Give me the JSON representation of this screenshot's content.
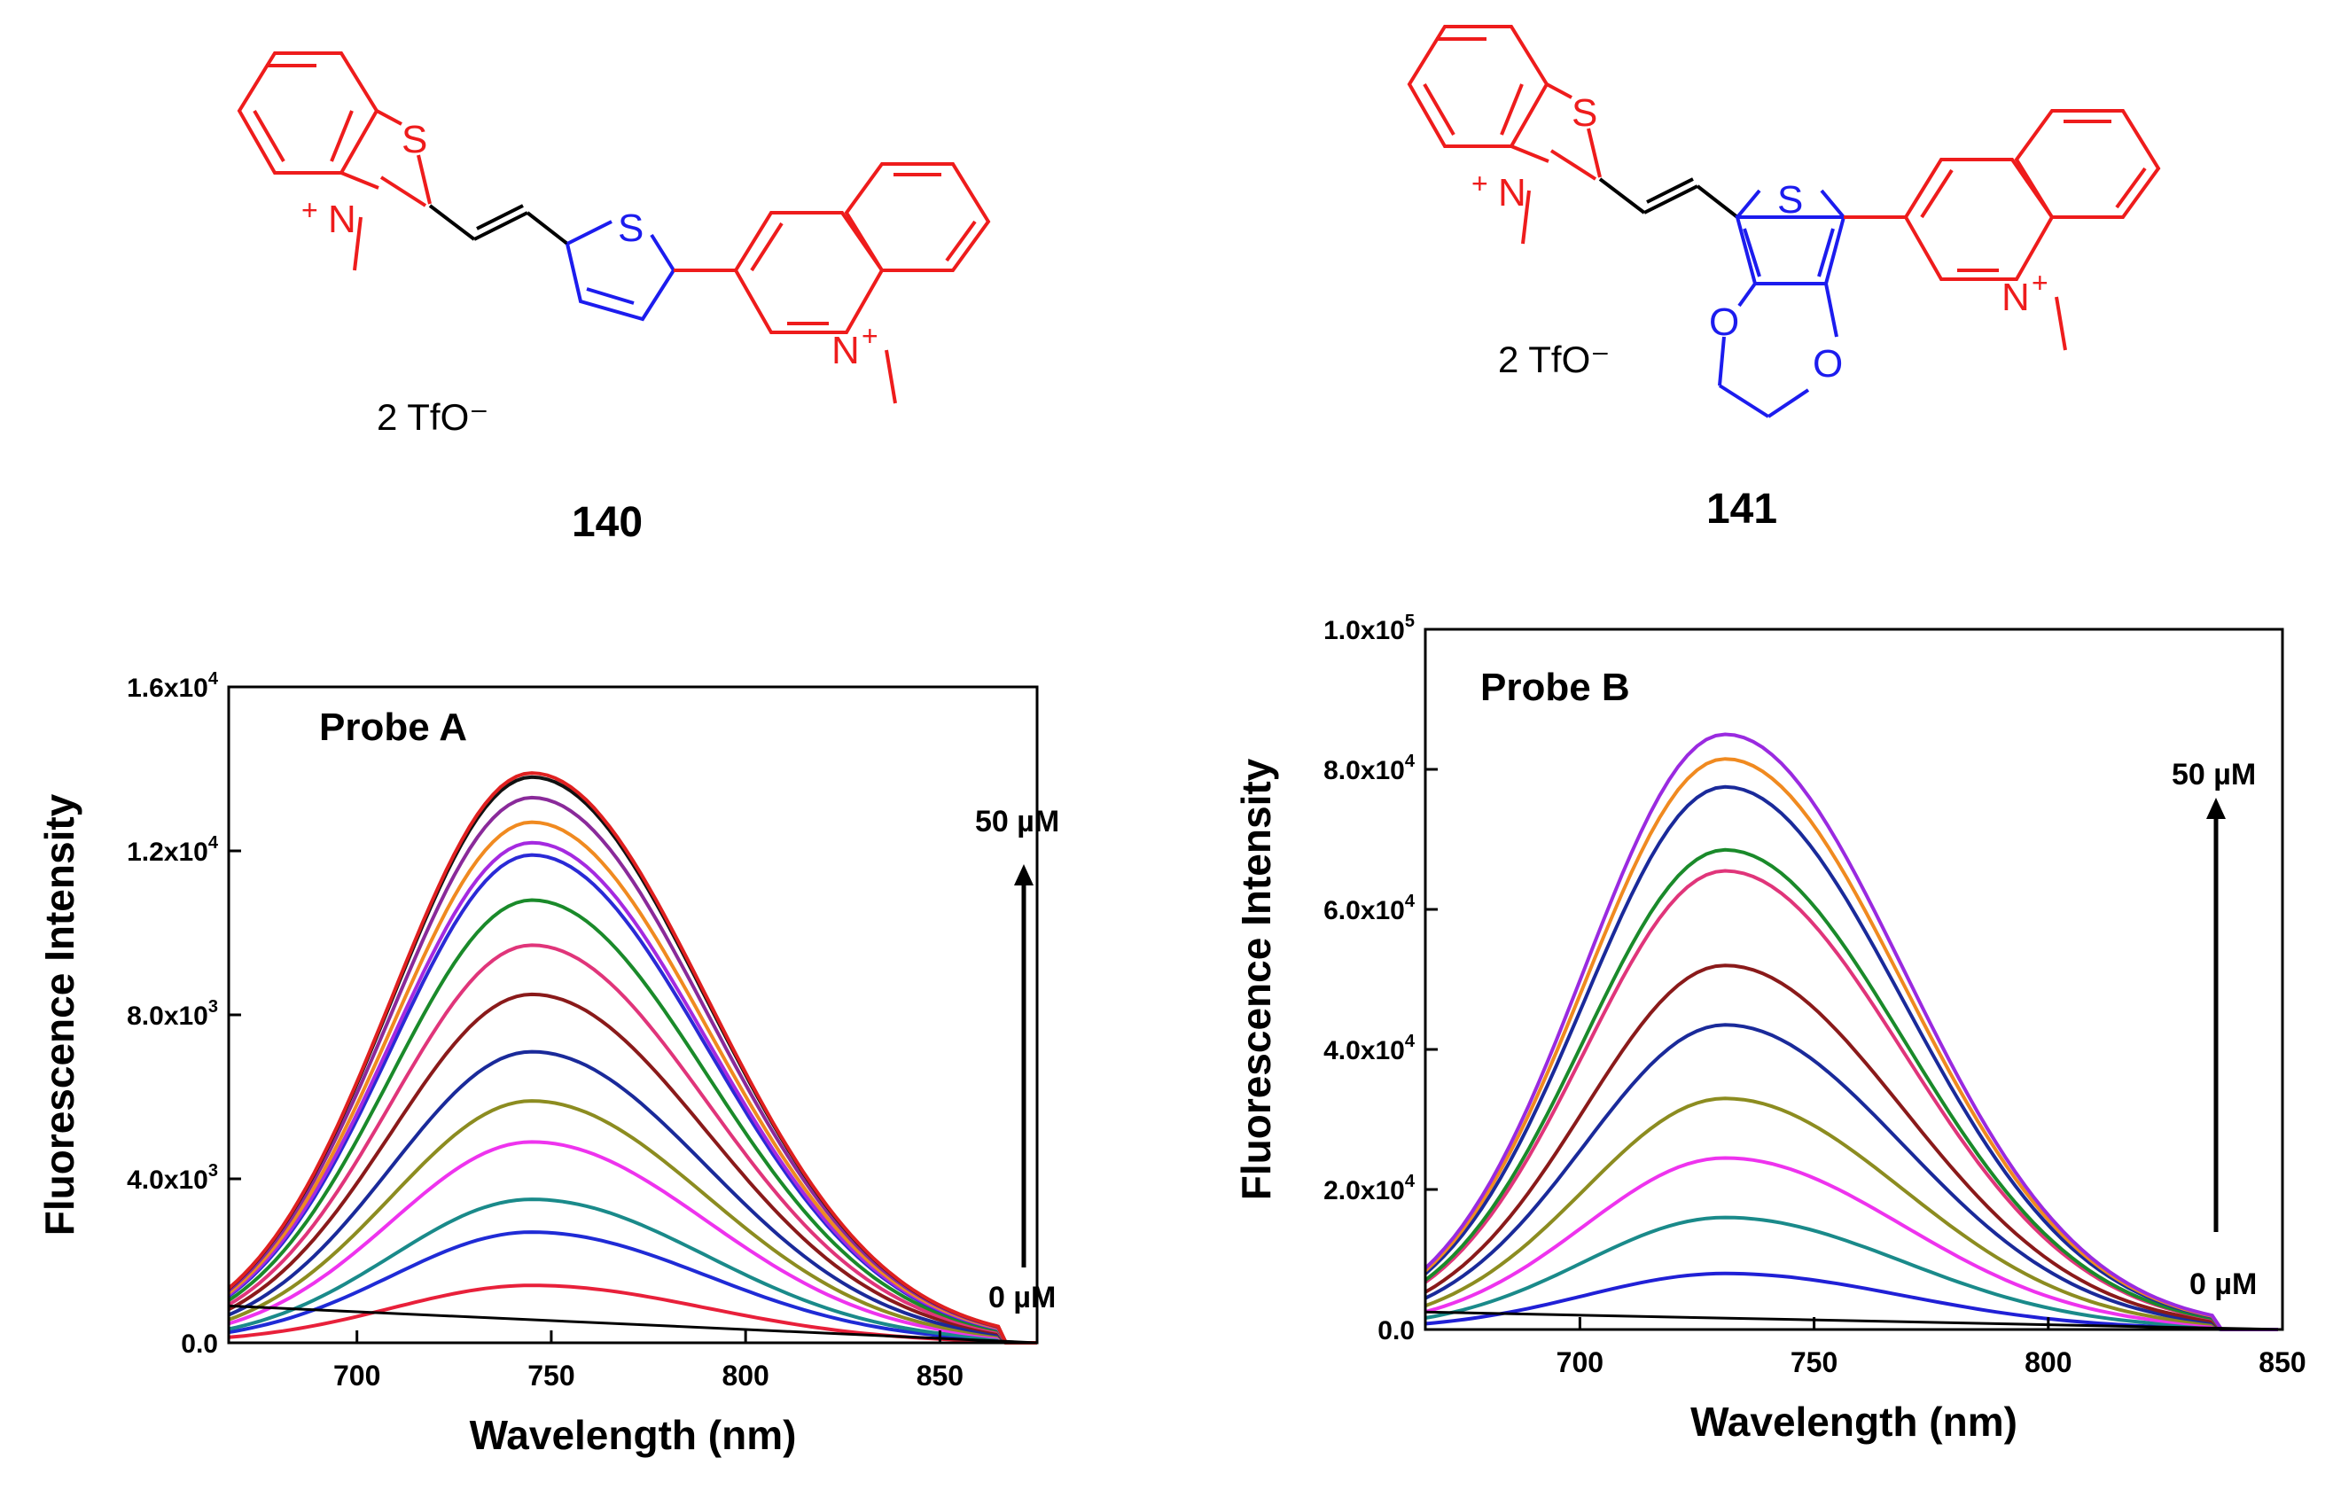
{
  "compounds": [
    {
      "id": "140",
      "counterion": "2 TfO⁻",
      "atoms": {
        "S_benz": "S",
        "N_benz": "N",
        "N_benz_charge": "+",
        "S_thio": "S",
        "N_quin": "N",
        "N_quin_charge": "+"
      }
    },
    {
      "id": "141",
      "counterion": "2 TfO⁻",
      "atoms": {
        "S_benz": "S",
        "N_benz": "N",
        "N_benz_charge": "+",
        "S_thio": "S",
        "O1": "O",
        "O2": "O",
        "N_quin": "N",
        "N_quin_charge": "+"
      }
    }
  ],
  "colors": {
    "benzothiazolium": "#ee1c1c",
    "thiophene": "#1c1cee",
    "quinolinium": "#ee1c1c",
    "bond": "#000000"
  },
  "chart_data": [
    {
      "type": "line",
      "title": "Probe A",
      "xlabel": "Wavelength (nm)",
      "ylabel": "Fluorescence Intensity",
      "xlim": [
        667,
        875
      ],
      "ylim": [
        0,
        16000
      ],
      "x_ticks": [
        700,
        750,
        800,
        850
      ],
      "x_tick_labels": [
        "700",
        "750",
        "800",
        "850"
      ],
      "y_ticks": [
        0,
        4000,
        8000,
        12000,
        16000
      ],
      "y_tick_labels": [
        {
          "mantissa": "0.0",
          "exp": ""
        },
        {
          "mantissa": "4.0x10",
          "exp": "3"
        },
        {
          "mantissa": "8.0x10",
          "exp": "3"
        },
        {
          "mantissa": "1.2x10",
          "exp": "4"
        },
        {
          "mantissa": "1.6x10",
          "exp": "4"
        }
      ],
      "annotation_top": "50 µM",
      "annotation_bottom": "0 µM",
      "curve_model": {
        "center": 745,
        "left_width": 36,
        "right_width": 45,
        "x_end": 865
      },
      "baseline": {
        "x": [
          667,
          875
        ],
        "y": [
          900,
          0
        ]
      },
      "series": [
        {
          "name": "0",
          "peak": 1400,
          "color": "#e8203a"
        },
        {
          "name": "1",
          "peak": 2700,
          "color": "#1f2bd6"
        },
        {
          "name": "2",
          "peak": 3500,
          "color": "#1a8a8a"
        },
        {
          "name": "3",
          "peak": 4900,
          "color": "#ee33ee"
        },
        {
          "name": "4",
          "peak": 5900,
          "color": "#8c8c20"
        },
        {
          "name": "5",
          "peak": 7100,
          "color": "#1a2a9a"
        },
        {
          "name": "6",
          "peak": 8500,
          "color": "#8a1a1a"
        },
        {
          "name": "7",
          "peak": 9700,
          "color": "#e0357a"
        },
        {
          "name": "8",
          "peak": 10800,
          "color": "#1a8a2a"
        },
        {
          "name": "9",
          "peak": 11900,
          "color": "#2a2ad6"
        },
        {
          "name": "10",
          "peak": 12200,
          "color": "#a52ae0"
        },
        {
          "name": "11",
          "peak": 12700,
          "color": "#f08a20"
        },
        {
          "name": "12",
          "peak": 13300,
          "color": "#8a2a9a"
        },
        {
          "name": "13",
          "peak": 13800,
          "color": "#111111"
        },
        {
          "name": "14",
          "peak": 13900,
          "color": "#e02020"
        }
      ]
    },
    {
      "type": "line",
      "title": "Probe B",
      "xlabel": "Wavelength (nm)",
      "ylabel": "Fluorescence Intensity",
      "xlim": [
        667,
        850
      ],
      "ylim": [
        0,
        100000
      ],
      "x_ticks": [
        700,
        750,
        800,
        850
      ],
      "x_tick_labels": [
        "700",
        "750",
        "800",
        "850"
      ],
      "y_ticks": [
        0,
        20000,
        40000,
        60000,
        80000,
        100000
      ],
      "y_tick_labels": [
        {
          "mantissa": "0.0",
          "exp": ""
        },
        {
          "mantissa": "2.0x10",
          "exp": "4"
        },
        {
          "mantissa": "4.0x10",
          "exp": "4"
        },
        {
          "mantissa": "6.0x10",
          "exp": "4"
        },
        {
          "mantissa": "8.0x10",
          "exp": "4"
        },
        {
          "mantissa": "1.0x10",
          "exp": "5"
        }
      ],
      "annotation_top": "50 µM",
      "annotation_bottom": "0 µM",
      "curve_model": {
        "center": 731,
        "left_width": 30,
        "right_width": 38,
        "x_end": 835
      },
      "baseline": {
        "x": [
          667,
          850
        ],
        "y": [
          2500,
          0
        ]
      },
      "series": [
        {
          "name": "0",
          "peak": 8000,
          "color": "#2020d6"
        },
        {
          "name": "1",
          "peak": 16000,
          "color": "#1a8a8a"
        },
        {
          "name": "2",
          "peak": 24500,
          "color": "#ee33ee"
        },
        {
          "name": "3",
          "peak": 33000,
          "color": "#8c8c20"
        },
        {
          "name": "4",
          "peak": 43500,
          "color": "#1a2a9a"
        },
        {
          "name": "5",
          "peak": 52000,
          "color": "#8a1a1a"
        },
        {
          "name": "6",
          "peak": 65500,
          "color": "#e0357a"
        },
        {
          "name": "7",
          "peak": 68500,
          "color": "#1a8a2a"
        },
        {
          "name": "8",
          "peak": 77500,
          "color": "#1a2a9a"
        },
        {
          "name": "9",
          "peak": 81500,
          "color": "#f08a20"
        },
        {
          "name": "10",
          "peak": 85000,
          "color": "#9a2ae0"
        }
      ]
    }
  ]
}
